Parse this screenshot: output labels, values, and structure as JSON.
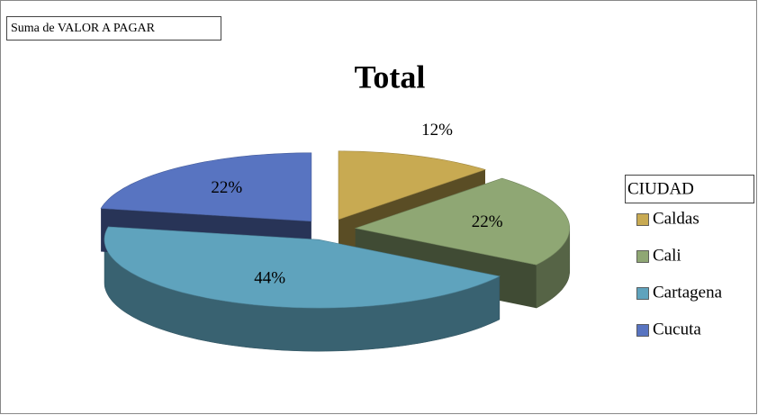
{
  "chart_data": {
    "type": "pie",
    "field": "Suma de VALOR A PAGAR",
    "title": "Total",
    "legend_title": "CIUDAD",
    "categories": [
      "Caldas",
      "Cali",
      "Cartagena",
      "Cucuta"
    ],
    "values": [
      12,
      22,
      44,
      22
    ],
    "value_labels": [
      "12%",
      "22%",
      "44%",
      "22%"
    ],
    "colors": [
      "#c8aa52",
      "#8fa774",
      "#5fa3bd",
      "#5874c1"
    ],
    "legend": "right"
  }
}
